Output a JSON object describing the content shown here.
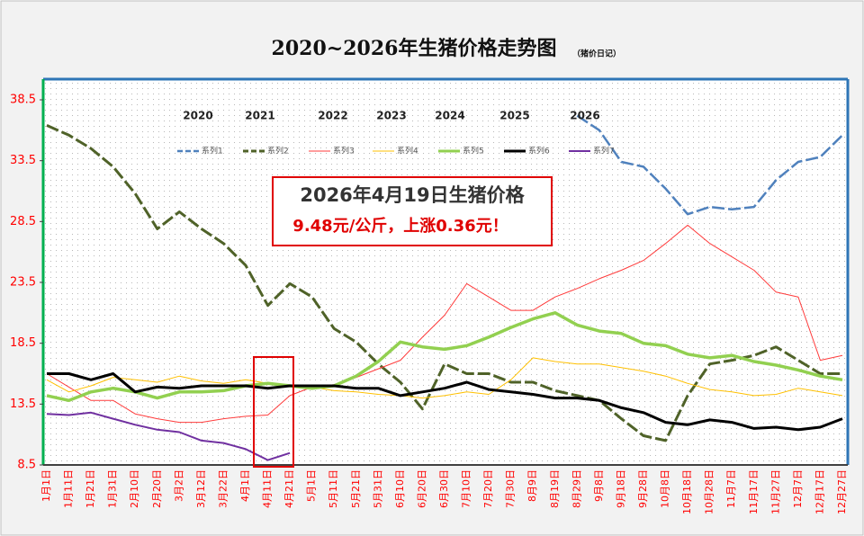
{
  "chart_data": {
    "type": "line",
    "title": "2020~2026年生猪价格走势图",
    "subtitle": "（猪价日记）",
    "year_labels": [
      "2020",
      "2021",
      "2022",
      "2023",
      "2024",
      "2025",
      "2026"
    ],
    "annotation": {
      "title": "2026年4月19日生猪价格",
      "text": "9.48元/公斤，上涨0.36元！"
    },
    "categories": [
      "1月1日",
      "1月11日",
      "1月21日",
      "1月31日",
      "2月10日",
      "2月20日",
      "3月2日",
      "3月12日",
      "3月22日",
      "4月1日",
      "4月11日",
      "4月21日",
      "5月1日",
      "5月11日",
      "5月21日",
      "5月31日",
      "6月10日",
      "6月20日",
      "6月30日",
      "7月10日",
      "7月20日",
      "7月30日",
      "8月9日",
      "8月19日",
      "8月29日",
      "9月8日",
      "9月18日",
      "9月28日",
      "10月8日",
      "10月18日",
      "10月28日",
      "11月7日",
      "11月17日",
      "11月27日",
      "12月7日",
      "12月17日",
      "12月27日"
    ],
    "ylim": [
      8.5,
      40.2
    ],
    "yticks": [
      8.5,
      13.5,
      18.5,
      23.5,
      28.5,
      33.5,
      38.5
    ],
    "grid": false,
    "series": [
      {
        "name": "系列1",
        "color": "#4f81bd",
        "dashed": true,
        "values": [
          null,
          null,
          null,
          null,
          null,
          null,
          null,
          null,
          null,
          null,
          null,
          null,
          null,
          null,
          null,
          null,
          null,
          null,
          null,
          null,
          null,
          null,
          null,
          null,
          37.2,
          36,
          33.4,
          33,
          31.2,
          29.1,
          29.7,
          29.5,
          29.7,
          31.9,
          33.4,
          33.8,
          35.6
        ]
      },
      {
        "name": "系列2",
        "color": "#4f6228",
        "dashed": true,
        "values": [
          36.4,
          35.6,
          34.5,
          33,
          30.8,
          27.9,
          29.3,
          27.9,
          26.7,
          24.9,
          21.6,
          23.4,
          22.3,
          19.7,
          18.6,
          16.8,
          15.3,
          13.1,
          16.8,
          16,
          16,
          15.3,
          15.3,
          14.6,
          14.2,
          13.8,
          12.3,
          10.9,
          10.5,
          14.2,
          16.8,
          17.1,
          17.5,
          18.2,
          17.1,
          16,
          16
        ]
      },
      {
        "name": "系列3",
        "color": "#ff3b3b",
        "dashed": false,
        "values": [
          16,
          14.9,
          13.8,
          13.8,
          12.7,
          12.3,
          12,
          12,
          12.3,
          12.5,
          12.6,
          14.2,
          14.9,
          15.1,
          15.7,
          16.4,
          17.1,
          19,
          20.8,
          23.4,
          22.3,
          21.2,
          21.2,
          22.3,
          23,
          23.8,
          24.5,
          25.3,
          26.7,
          28.2,
          26.7,
          25.6,
          24.5,
          22.7,
          22.3,
          17.1,
          17.5
        ]
      },
      {
        "name": "系列4",
        "color": "#ffc000",
        "dashed": false,
        "values": [
          15.5,
          14.5,
          15,
          15.7,
          15.5,
          15.3,
          15.8,
          15.4,
          15.2,
          15.5,
          15.2,
          15,
          14.9,
          14.6,
          14.5,
          14.3,
          14.2,
          14,
          14.2,
          14.5,
          14.3,
          15.5,
          17.3,
          17,
          16.8,
          16.8,
          16.5,
          16.2,
          15.8,
          15.2,
          14.7,
          14.5,
          14.2,
          14.3,
          14.8,
          14.5,
          14.2
        ]
      },
      {
        "name": "系列5",
        "color": "#92d050",
        "dashed": false,
        "values": [
          14.2,
          13.8,
          14.5,
          14.8,
          14.5,
          14,
          14.5,
          14.5,
          14.6,
          15,
          15.2,
          15,
          14.8,
          15,
          15.8,
          17,
          18.6,
          18.2,
          18,
          18.3,
          19,
          19.8,
          20.5,
          21,
          20,
          19.5,
          19.3,
          18.5,
          18.3,
          17.6,
          17.3,
          17.5,
          17,
          16.7,
          16.3,
          15.8,
          15.5
        ]
      },
      {
        "name": "系列6",
        "color": "#000000",
        "dashed": false,
        "values": [
          16,
          16,
          15.5,
          16,
          14.5,
          14.9,
          14.8,
          15,
          15,
          15,
          14.8,
          15,
          15,
          15,
          14.8,
          14.8,
          14.2,
          14.5,
          14.8,
          15.3,
          14.7,
          14.5,
          14.3,
          14,
          14,
          13.8,
          13.2,
          12.8,
          12,
          11.8,
          12.2,
          12,
          11.5,
          11.6,
          11.4,
          11.6,
          12.3
        ]
      },
      {
        "name": "系列7",
        "color": "#7030a0",
        "dashed": false,
        "values": [
          12.7,
          12.6,
          12.8,
          12.3,
          11.8,
          11.4,
          11.2,
          10.5,
          10.3,
          9.8,
          8.9,
          9.48,
          null,
          null,
          null,
          null,
          null,
          null,
          null,
          null,
          null,
          null,
          null,
          null,
          null,
          null,
          null,
          null,
          null,
          null,
          null,
          null,
          null,
          null,
          null,
          null,
          null
        ]
      }
    ]
  }
}
